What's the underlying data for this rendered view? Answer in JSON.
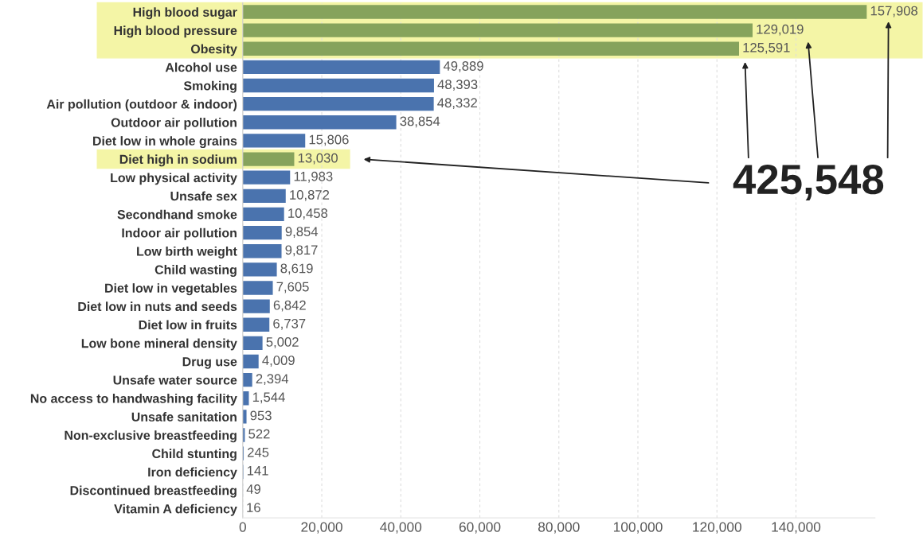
{
  "chart_data": {
    "type": "bar",
    "orientation": "horizontal",
    "categories": [
      "High blood sugar",
      "High blood pressure",
      "Obesity",
      "Alcohol use",
      "Smoking",
      "Air pollution (outdoor & indoor)",
      "Outdoor air pollution",
      "Diet low in whole grains",
      "Diet high in sodium",
      "Low physical activity",
      "Unsafe sex",
      "Secondhand smoke",
      "Indoor air pollution",
      "Low birth weight",
      "Child wasting",
      "Diet low in vegetables",
      "Diet low in nuts and seeds",
      "Diet low in fruits",
      "Low bone mineral density",
      "Drug use",
      "Unsafe water source",
      "No access to handwashing facility",
      "Unsafe sanitation",
      "Non-exclusive breastfeeding",
      "Child stunting",
      "Iron deficiency",
      "Discontinued breastfeeding",
      "Vitamin A deficiency"
    ],
    "values": [
      157908,
      129019,
      125591,
      49889,
      48393,
      48332,
      38854,
      15806,
      13030,
      11983,
      10872,
      10458,
      9854,
      9817,
      8619,
      7605,
      6842,
      6737,
      5002,
      4009,
      2394,
      1544,
      953,
      522,
      245,
      141,
      49,
      16
    ],
    "colors": [
      "#86a35c",
      "#86a35c",
      "#86a35c",
      "#4a73ae",
      "#4a73ae",
      "#4a73ae",
      "#4a73ae",
      "#4a73ae",
      "#86a35c",
      "#4a73ae",
      "#4a73ae",
      "#4a73ae",
      "#4a73ae",
      "#4a73ae",
      "#4a73ae",
      "#4a73ae",
      "#4a73ae",
      "#4a73ae",
      "#4a73ae",
      "#4a73ae",
      "#4a73ae",
      "#4a73ae",
      "#4a73ae",
      "#4a73ae",
      "#4a73ae",
      "#4a73ae",
      "#4a73ae",
      "#4a73ae"
    ],
    "value_labels": [
      "157,908",
      "129,019",
      "125,591",
      "49,889",
      "48,393",
      "48,332",
      "38,854",
      "15,806",
      "13,030",
      "11,983",
      "10,872",
      "10,458",
      "9,854",
      "9,817",
      "8,619",
      "7,605",
      "6,842",
      "6,737",
      "5,002",
      "4,009",
      "2,394",
      "1,544",
      "953",
      "522",
      "245",
      "141",
      "49",
      "16"
    ],
    "xlim": [
      0,
      160000
    ],
    "xticks": [
      {
        "value": 0,
        "label": "0"
      },
      {
        "value": 20000,
        "label": "20,000"
      },
      {
        "value": 40000,
        "label": "40,000"
      },
      {
        "value": 60000,
        "label": "60,000"
      },
      {
        "value": 80000,
        "label": "80,000"
      },
      {
        "value": 100000,
        "label": "100,000"
      },
      {
        "value": 120000,
        "label": "120,000"
      },
      {
        "value": 140000,
        "label": "140,000"
      }
    ],
    "grid": "x",
    "bands": [
      {
        "axis": "y",
        "from": "High blood sugar",
        "to": "Obesity",
        "color": "#f4f5a6"
      },
      {
        "axis": "y",
        "from": "Diet high in sodium",
        "to": "Diet high in sodium",
        "color": "#f4f5a6"
      }
    ],
    "annotations": [
      "425,548"
    ]
  }
}
